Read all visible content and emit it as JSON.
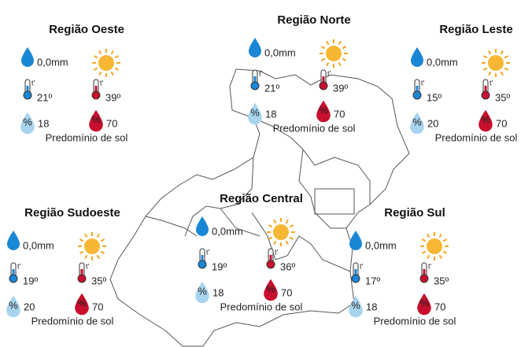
{
  "icon_labels": {
    "temperature": "t'",
    "humidity": "%"
  },
  "regions": [
    {
      "name": "Região Oeste",
      "rain": "0,0mm",
      "temp_min": "21º",
      "temp_max": "39º",
      "humidity_min": "18",
      "humidity_max": "70",
      "condition": "Predomínio de sol"
    },
    {
      "name": "Região Norte",
      "rain": "0,0mm",
      "temp_min": "21º",
      "temp_max": "39º",
      "humidity_min": "18",
      "humidity_max": "70",
      "condition": "Predomínio de sol"
    },
    {
      "name": "Região Leste",
      "rain": "0,0mm",
      "temp_min": "15º",
      "temp_max": "35º",
      "humidity_min": "20",
      "humidity_max": "70",
      "condition": "Predomínio de sol"
    },
    {
      "name": "Região Sudoeste",
      "rain": "0,0mm",
      "temp_min": "19º",
      "temp_max": "35º",
      "humidity_min": "20",
      "humidity_max": "70",
      "condition": "Predomínio de sol"
    },
    {
      "name": "Região Central",
      "rain": "0,0mm",
      "temp_min": "19º",
      "temp_max": "36º",
      "humidity_min": "18",
      "humidity_max": "70",
      "condition": "Predomínio de sol"
    },
    {
      "name": "Região Sul",
      "rain": "0,0mm",
      "temp_min": "17º",
      "temp_max": "35º",
      "humidity_min": "18",
      "humidity_max": "70",
      "condition": "Predomínio de sol"
    }
  ]
}
